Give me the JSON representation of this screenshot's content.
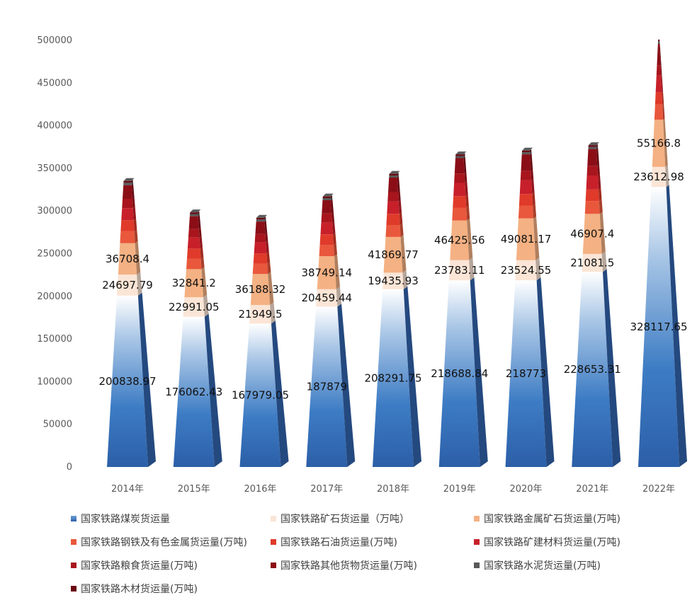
{
  "chart_data": {
    "type": "bar",
    "stacked": true,
    "categories": [
      "2014年",
      "2015年",
      "2016年",
      "2017年",
      "2018年",
      "2019年",
      "2020年",
      "2021年",
      "2022年"
    ],
    "ylim": [
      0,
      500000
    ],
    "yticks": [
      0,
      50000,
      100000,
      150000,
      200000,
      250000,
      300000,
      350000,
      400000,
      450000,
      500000
    ],
    "grid": false,
    "legend_position": "bottom",
    "series": [
      {
        "name": "国家铁路煤炭货运量",
        "color": "#2e75b6",
        "values": [
          200838.97,
          176062.43,
          167979.05,
          187879,
          208291.75,
          218688.84,
          218773,
          228653.31,
          328117.65
        ]
      },
      {
        "name": "国家铁路矿石货运量（万吨）",
        "color": "#fbe5d6",
        "values": [
          24697.79,
          22991.05,
          21949.5,
          20459.44,
          19435.93,
          23783.11,
          23524.55,
          21081.5,
          23612.98
        ]
      },
      {
        "name": "国家铁路金属矿石货运量(万吨)",
        "color": "#f4b183",
        "values": [
          36708.4,
          32841.2,
          36188.32,
          38749.14,
          41869.77,
          46425.56,
          49081.17,
          46907.4,
          55166.8
        ]
      },
      {
        "name": "国家铁路钢铁及有色金属货运量(万吨)",
        "color": "#e9583c",
        "values": [
          14000,
          12000,
          12000,
          13000,
          14000,
          15000,
          15000,
          15000,
          18000
        ]
      },
      {
        "name": "国家铁路石油货运量(万吨)",
        "color": "#e03a2a",
        "values": [
          13000,
          12000,
          12000,
          12500,
          13000,
          13500,
          13500,
          13500,
          14000
        ]
      },
      {
        "name": "国家铁路矿建材料货运量(万吨)",
        "color": "#c8202a",
        "values": [
          14000,
          13000,
          13000,
          14000,
          14500,
          15500,
          16000,
          16500,
          20000
        ]
      },
      {
        "name": "国家铁路粮食货运量(万吨)",
        "color": "#a8151d",
        "values": [
          11000,
          10000,
          10000,
          10500,
          11000,
          11000,
          11000,
          11000,
          12000
        ]
      },
      {
        "name": "国家铁路其他货物货运量(万吨)",
        "color": "#8b0e17",
        "values": [
          16000,
          15000,
          14500,
          15500,
          17000,
          18000,
          19500,
          20000,
          25000
        ]
      },
      {
        "name": "国家铁路水泥货运量(万吨)",
        "color": "#595959",
        "values": [
          3000,
          2500,
          2500,
          2500,
          2500,
          2500,
          2500,
          2500,
          3000
        ]
      },
      {
        "name": "国家铁路木材货运量(万吨)",
        "color": "#6a0711",
        "values": [
          2000,
          2000,
          2000,
          2000,
          2000,
          2000,
          2000,
          2000,
          2000
        ]
      }
    ],
    "labeled_series": [
      0,
      1,
      2
    ]
  }
}
